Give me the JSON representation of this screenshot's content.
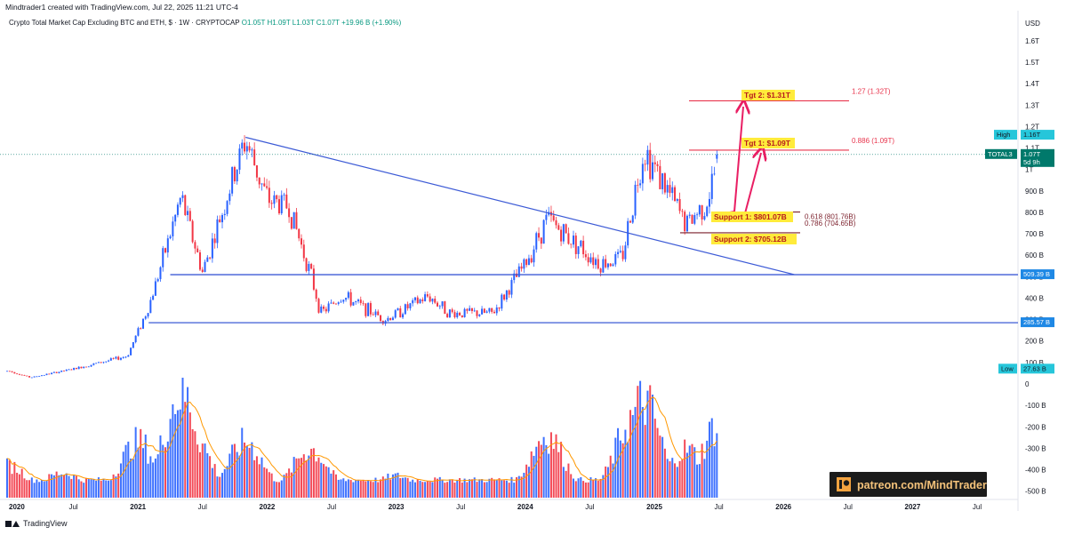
{
  "header": {
    "credit": "Mindtrader1 created with TradingView.com, Jul 22, 2025 11:21 UTC-4",
    "symbol_desc": "Crypto Total Market Cap Excluding BTC and ETH, $ · 1W · CRYPTOCAP",
    "ohlc": "O1.05T  H1.09T  L1.03T  C1.07T  +19.96 B (+1.90%)"
  },
  "footer": {
    "brand": "TradingView"
  },
  "watermark": "patreon.com/MindTrader",
  "colors": {
    "up": "#2962ff",
    "down": "#f23645",
    "trend": "#3d5bd6",
    "fib": "#e8354d",
    "label_bg": "#ffeb3b",
    "arrow": "#e91e63",
    "ma": "#ff9800",
    "tag_blue": "#1e88e5",
    "tag_teal": "#26c6da",
    "tag_dark": "#00796b"
  },
  "chart_data": {
    "type": "candlestick",
    "title": "Crypto Total Market Cap Excluding BTC and ETH, $ · 1W · CRYPTOCAP",
    "unit": "USD",
    "x_axis_labels": [
      "2020",
      "Jul",
      "2021",
      "Jul",
      "2022",
      "Jul",
      "2023",
      "Jul",
      "2024",
      "Jul",
      "2025",
      "Jul",
      "2026",
      "Jul",
      "2027",
      "Jul"
    ],
    "price_axis_labels": [
      "USD",
      "1.6T",
      "1.5T",
      "1.4T",
      "1.3T",
      "1.2T",
      "1.1T",
      "1T",
      "900 B",
      "800 B",
      "700 B",
      "600 B",
      "500 B",
      "400 B",
      "300 B",
      "200 B",
      "100 B",
      "0",
      "-100 B",
      "-200 B",
      "-300 B",
      "-400 B",
      "-500 B"
    ],
    "price_keypoints_billion": [
      [
        "2020-01",
        60
      ],
      [
        "2020-03",
        30
      ],
      [
        "2020-07",
        70
      ],
      [
        "2020-12",
        130
      ],
      [
        "2021-02",
        360
      ],
      [
        "2021-05",
        870
      ],
      [
        "2021-07",
        520
      ],
      [
        "2021-11",
        1140
      ],
      [
        "2022-01",
        860
      ],
      [
        "2022-03",
        830
      ],
      [
        "2022-05",
        520
      ],
      [
        "2022-06",
        330
      ],
      [
        "2022-08",
        410
      ],
      [
        "2022-12",
        300
      ],
      [
        "2023-04",
        410
      ],
      [
        "2023-06",
        330
      ],
      [
        "2023-10",
        330
      ],
      [
        "2024-01",
        560
      ],
      [
        "2024-03",
        770
      ],
      [
        "2024-08",
        560
      ],
      [
        "2024-10",
        590
      ],
      [
        "2024-12",
        1100
      ],
      [
        "2025-04",
        740
      ],
      [
        "2025-06",
        860
      ],
      [
        "2025-07",
        1070
      ]
    ],
    "horizontal_levels": [
      {
        "label": "509.39 B",
        "value_billion": 509.39
      },
      {
        "label": "285.57 B",
        "value_billion": 285.57
      }
    ],
    "trendline": {
      "from": [
        "2021-11",
        1150
      ],
      "to": [
        "2026-02",
        510
      ]
    },
    "fib_levels": [
      {
        "label": "1.27 (1.32T)",
        "value_billion": 1320
      },
      {
        "label": "0.886 (1.09T)",
        "value_billion": 1090
      },
      {
        "label": "0.618 (801.76B)",
        "value_billion": 801.76
      },
      {
        "label": "0.786 (704.65B)",
        "value_billion": 704.65
      }
    ],
    "annotations": [
      {
        "label": "Tgt 2: $1.31T",
        "value_billion": 1310
      },
      {
        "label": "Tgt 1: $1.09T",
        "value_billion": 1090
      },
      {
        "label": "Support 1: $801.07B",
        "value_billion": 801.07
      },
      {
        "label": "Support 2: $705.12B",
        "value_billion": 705.12
      }
    ],
    "price_tags": [
      {
        "title": "High",
        "value": "1.16T"
      },
      {
        "title": "TOTAL3",
        "value": "1.07T",
        "sub": "5d 9h"
      },
      {
        "title": "",
        "value": "509.39 B"
      },
      {
        "title": "",
        "value": "285.57 B"
      },
      {
        "title": "Low",
        "value": "27.63 B"
      }
    ],
    "series": [
      {
        "type": "candlestick"
      },
      {
        "type": "volume-histogram"
      },
      {
        "type": "volume-moving-average"
      }
    ],
    "volume_peaks_relative": [
      [
        "2020-01",
        0.22
      ],
      [
        "2020-06",
        0.15
      ],
      [
        "2021-01",
        0.45
      ],
      [
        "2021-05",
        0.93
      ],
      [
        "2021-06",
        0.55
      ],
      [
        "2021-11",
        0.45
      ],
      [
        "2022-05",
        0.38
      ],
      [
        "2023-01",
        0.12
      ],
      [
        "2024-03",
        0.52
      ],
      [
        "2024-11",
        0.68
      ],
      [
        "2024-12",
        0.85
      ],
      [
        "2025-04",
        0.38
      ],
      [
        "2025-07",
        0.63
      ]
    ]
  }
}
